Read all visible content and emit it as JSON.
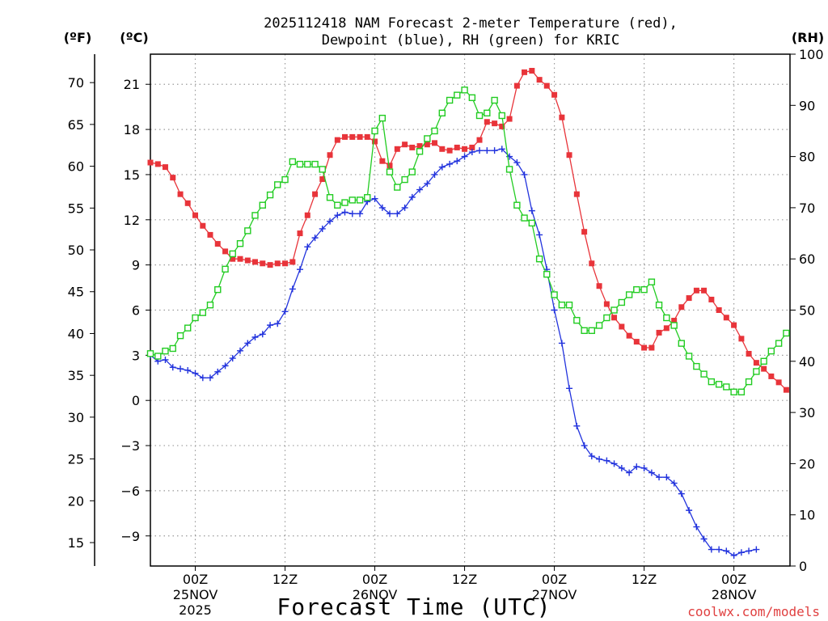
{
  "title_line1": "2025112418 NAM Forecast 2-meter Temperature (red),",
  "title_line2": "Dewpoint (blue), RH (green) for KRIC",
  "unit_f": "(ºF)",
  "unit_c": "(ºC)",
  "unit_rh": "(RH)",
  "x_title": "Forecast Time (UTC)",
  "credit": "coolwx.com/models",
  "colors": {
    "temp": "#e8343a",
    "dewpoint": "#2233dd",
    "rh": "#22cc22",
    "grid": "#9a9a9a"
  },
  "chart_data": {
    "type": "line",
    "title": "2025112418 NAM Forecast 2-meter Temperature (red), Dewpoint (blue), RH (green) for KRIC",
    "xlabel": "Forecast Time (UTC)",
    "x_hours_from_start": [
      0,
      57
    ],
    "x_ticks": [
      {
        "hour": 4,
        "label": "00Z",
        "date": "25NOV",
        "year": "2025"
      },
      {
        "hour": 12,
        "label": "12Z",
        "date": "",
        "year": ""
      },
      {
        "hour": 20,
        "label": "00Z",
        "date": "26NOV",
        "year": ""
      },
      {
        "hour": 28,
        "label": "12Z",
        "date": "",
        "year": ""
      },
      {
        "hour": 36,
        "label": "00Z",
        "date": "27NOV",
        "year": ""
      },
      {
        "hour": 44,
        "label": "12Z",
        "date": "",
        "year": ""
      },
      {
        "hour": 52,
        "label": "00Z",
        "date": "28NOV",
        "year": ""
      }
    ],
    "y_celsius": {
      "range": [
        -11,
        23
      ],
      "ticks": [
        "-9",
        "-6",
        "-3",
        "0",
        "3",
        "6",
        "9",
        "12",
        "15",
        "18",
        "21"
      ]
    },
    "y_fahrenheit": {
      "ticks": [
        "15",
        "20",
        "25",
        "30",
        "35",
        "40",
        "45",
        "50",
        "55",
        "60",
        "65",
        "70"
      ]
    },
    "y_rh": {
      "range": [
        0,
        100
      ],
      "ticks": [
        "0",
        "10",
        "20",
        "30",
        "40",
        "50",
        "60",
        "70",
        "80",
        "90",
        "100"
      ]
    },
    "series": [
      {
        "name": "Temperature (°C)",
        "marker": "filled-square",
        "axis": "celsius",
        "points": [
          [
            0,
            15.8
          ],
          [
            0.67,
            15.7
          ],
          [
            1.33,
            15.5
          ],
          [
            2,
            14.8
          ],
          [
            2.67,
            13.7
          ],
          [
            3.33,
            13.1
          ],
          [
            4,
            12.3
          ],
          [
            4.67,
            11.6
          ],
          [
            5.33,
            11
          ],
          [
            6,
            10.4
          ],
          [
            6.67,
            9.9
          ],
          [
            7.33,
            9.4
          ],
          [
            8,
            9.4
          ],
          [
            8.67,
            9.3
          ],
          [
            9.33,
            9.2
          ],
          [
            10,
            9.1
          ],
          [
            10.67,
            9.0
          ],
          [
            11.33,
            9.1
          ],
          [
            12,
            9.1
          ],
          [
            12.67,
            9.2
          ],
          [
            13.33,
            11.1
          ],
          [
            14,
            12.3
          ],
          [
            14.67,
            13.7
          ],
          [
            15.33,
            14.7
          ],
          [
            16,
            16.3
          ],
          [
            16.67,
            17.3
          ],
          [
            17.33,
            17.5
          ],
          [
            18,
            17.5
          ],
          [
            18.67,
            17.5
          ],
          [
            19.33,
            17.5
          ],
          [
            20,
            17.2
          ],
          [
            20.67,
            15.9
          ],
          [
            21.33,
            15.6
          ],
          [
            22,
            16.7
          ],
          [
            22.67,
            17.0
          ],
          [
            23.33,
            16.8
          ],
          [
            24,
            16.9
          ],
          [
            24.67,
            17.0
          ],
          [
            25.33,
            17.1
          ],
          [
            26,
            16.7
          ],
          [
            26.67,
            16.6
          ],
          [
            27.33,
            16.8
          ],
          [
            28,
            16.7
          ],
          [
            28.67,
            16.8
          ],
          [
            29.33,
            17.3
          ],
          [
            30,
            18.5
          ],
          [
            30.67,
            18.4
          ],
          [
            31.33,
            18.2
          ],
          [
            32,
            18.7
          ],
          [
            32.67,
            20.9
          ],
          [
            33.33,
            21.8
          ],
          [
            34,
            21.9
          ],
          [
            34.67,
            21.3
          ],
          [
            35.33,
            20.9
          ],
          [
            36,
            20.3
          ],
          [
            36.67,
            18.8
          ],
          [
            37.33,
            16.3
          ],
          [
            38,
            13.7
          ],
          [
            38.67,
            11.2
          ],
          [
            39.33,
            9.1
          ],
          [
            40,
            7.6
          ],
          [
            40.67,
            6.4
          ],
          [
            41.33,
            5.5
          ],
          [
            42,
            4.9
          ],
          [
            42.67,
            4.3
          ],
          [
            43.33,
            3.9
          ],
          [
            44,
            3.5
          ],
          [
            44.67,
            3.5
          ],
          [
            45.33,
            4.5
          ],
          [
            46,
            4.8
          ],
          [
            46.67,
            5.3
          ],
          [
            47.33,
            6.2
          ],
          [
            48,
            6.8
          ],
          [
            48.67,
            7.3
          ],
          [
            49.33,
            7.3
          ],
          [
            50,
            6.7
          ],
          [
            50.67,
            6.0
          ],
          [
            51.33,
            5.5
          ],
          [
            52,
            5.0
          ],
          [
            52.67,
            4.1
          ],
          [
            53.33,
            3.1
          ],
          [
            54,
            2.5
          ],
          [
            54.67,
            2.1
          ],
          [
            55.33,
            1.6
          ],
          [
            56,
            1.2
          ],
          [
            56.67,
            0.7
          ]
        ]
      },
      {
        "name": "Dewpoint (°C)",
        "marker": "plus",
        "axis": "celsius",
        "points": [
          [
            0,
            3.0
          ],
          [
            0.67,
            2.6
          ],
          [
            1.33,
            2.7
          ],
          [
            2,
            2.2
          ],
          [
            2.67,
            2.1
          ],
          [
            3.33,
            2.0
          ],
          [
            4,
            1.8
          ],
          [
            4.67,
            1.5
          ],
          [
            5.33,
            1.5
          ],
          [
            6,
            1.9
          ],
          [
            6.67,
            2.3
          ],
          [
            7.33,
            2.8
          ],
          [
            8,
            3.3
          ],
          [
            8.67,
            3.8
          ],
          [
            9.33,
            4.2
          ],
          [
            10,
            4.4
          ],
          [
            10.67,
            5.0
          ],
          [
            11.33,
            5.1
          ],
          [
            12,
            5.9
          ],
          [
            12.67,
            7.4
          ],
          [
            13.33,
            8.7
          ],
          [
            14,
            10.2
          ],
          [
            14.67,
            10.8
          ],
          [
            15.33,
            11.4
          ],
          [
            16,
            11.9
          ],
          [
            16.67,
            12.3
          ],
          [
            17.33,
            12.5
          ],
          [
            18,
            12.4
          ],
          [
            18.67,
            12.4
          ],
          [
            19.33,
            13.2
          ],
          [
            20,
            13.4
          ],
          [
            20.67,
            12.8
          ],
          [
            21.33,
            12.4
          ],
          [
            22,
            12.4
          ],
          [
            22.67,
            12.8
          ],
          [
            23.33,
            13.5
          ],
          [
            24,
            14.0
          ],
          [
            24.67,
            14.4
          ],
          [
            25.33,
            15.0
          ],
          [
            26,
            15.5
          ],
          [
            26.67,
            15.7
          ],
          [
            27.33,
            15.9
          ],
          [
            28,
            16.2
          ],
          [
            28.67,
            16.5
          ],
          [
            29.33,
            16.6
          ],
          [
            30,
            16.6
          ],
          [
            30.67,
            16.6
          ],
          [
            31.33,
            16.7
          ],
          [
            32,
            16.2
          ],
          [
            32.67,
            15.8
          ],
          [
            33.33,
            15.0
          ],
          [
            34,
            12.6
          ],
          [
            34.67,
            11.0
          ],
          [
            35.33,
            8.7
          ],
          [
            36,
            6.0
          ],
          [
            36.67,
            3.8
          ],
          [
            37.33,
            0.8
          ],
          [
            38,
            -1.7
          ],
          [
            38.67,
            -3.0
          ],
          [
            39.33,
            -3.7
          ],
          [
            40,
            -3.9
          ],
          [
            40.67,
            -4.0
          ],
          [
            41.33,
            -4.2
          ],
          [
            42,
            -4.5
          ],
          [
            42.67,
            -4.8
          ],
          [
            43.33,
            -4.4
          ],
          [
            44,
            -4.5
          ],
          [
            44.67,
            -4.8
          ],
          [
            45.33,
            -5.1
          ],
          [
            46,
            -5.1
          ],
          [
            46.67,
            -5.5
          ],
          [
            47.33,
            -6.2
          ],
          [
            48,
            -7.3
          ],
          [
            48.67,
            -8.4
          ],
          [
            49.33,
            -9.2
          ],
          [
            50,
            -9.9
          ],
          [
            50.67,
            -9.9
          ],
          [
            51.33,
            -10.0
          ],
          [
            52,
            -10.3
          ],
          [
            52.67,
            -10.1
          ],
          [
            53.33,
            -10.0
          ],
          [
            54,
            -9.9
          ]
        ]
      },
      {
        "name": "Relative Humidity (%)",
        "marker": "open-square",
        "axis": "rh",
        "points": [
          [
            0,
            41.5
          ],
          [
            0.67,
            41
          ],
          [
            1.33,
            42
          ],
          [
            2,
            42.5
          ],
          [
            2.67,
            45
          ],
          [
            3.33,
            46.5
          ],
          [
            4,
            48.5
          ],
          [
            4.67,
            49.5
          ],
          [
            5.33,
            51
          ],
          [
            6,
            54
          ],
          [
            6.67,
            58
          ],
          [
            7.33,
            61
          ],
          [
            8,
            63
          ],
          [
            8.67,
            65.5
          ],
          [
            9.33,
            68.5
          ],
          [
            10,
            70.5
          ],
          [
            10.67,
            72.5
          ],
          [
            11.33,
            74.5
          ],
          [
            12,
            75.5
          ],
          [
            12.67,
            79
          ],
          [
            13.33,
            78.5
          ],
          [
            14,
            78.5
          ],
          [
            14.67,
            78.5
          ],
          [
            15.33,
            77.5
          ],
          [
            16,
            72
          ],
          [
            16.67,
            70.5
          ],
          [
            17.33,
            71
          ],
          [
            18,
            71.5
          ],
          [
            18.67,
            71.5
          ],
          [
            19.33,
            72
          ],
          [
            20,
            85
          ],
          [
            20.67,
            87.5
          ],
          [
            21.33,
            77
          ],
          [
            22,
            74
          ],
          [
            22.67,
            75.5
          ],
          [
            23.33,
            77
          ],
          [
            24,
            81
          ],
          [
            24.67,
            83.5
          ],
          [
            25.33,
            85
          ],
          [
            26,
            88.5
          ],
          [
            26.67,
            91
          ],
          [
            27.33,
            92
          ],
          [
            28,
            93
          ],
          [
            28.67,
            91.5
          ],
          [
            29.33,
            88
          ],
          [
            30,
            88.5
          ],
          [
            30.67,
            91
          ],
          [
            31.33,
            88
          ],
          [
            32,
            77.5
          ],
          [
            32.67,
            70.5
          ],
          [
            33.33,
            68
          ],
          [
            34,
            67
          ],
          [
            34.67,
            60
          ],
          [
            35.33,
            57
          ],
          [
            36,
            53
          ],
          [
            36.67,
            51
          ],
          [
            37.33,
            51
          ],
          [
            38,
            48
          ],
          [
            38.67,
            46
          ],
          [
            39.33,
            46
          ],
          [
            40,
            47
          ],
          [
            40.67,
            48.5
          ],
          [
            41.33,
            50
          ],
          [
            42,
            51.5
          ],
          [
            42.67,
            53
          ],
          [
            43.33,
            54
          ],
          [
            44,
            54
          ],
          [
            44.67,
            55.5
          ],
          [
            45.33,
            51
          ],
          [
            46,
            48.5
          ],
          [
            46.67,
            47
          ],
          [
            47.33,
            43.5
          ],
          [
            48,
            41
          ],
          [
            48.67,
            39
          ],
          [
            49.33,
            37.5
          ],
          [
            50,
            36
          ],
          [
            50.67,
            35.5
          ],
          [
            51.33,
            35
          ],
          [
            52,
            34
          ],
          [
            52.67,
            34
          ],
          [
            53.33,
            36
          ],
          [
            54,
            38
          ],
          [
            54.67,
            40
          ],
          [
            55.33,
            42
          ],
          [
            56,
            43.5
          ],
          [
            56.67,
            45.5
          ]
        ]
      }
    ]
  }
}
